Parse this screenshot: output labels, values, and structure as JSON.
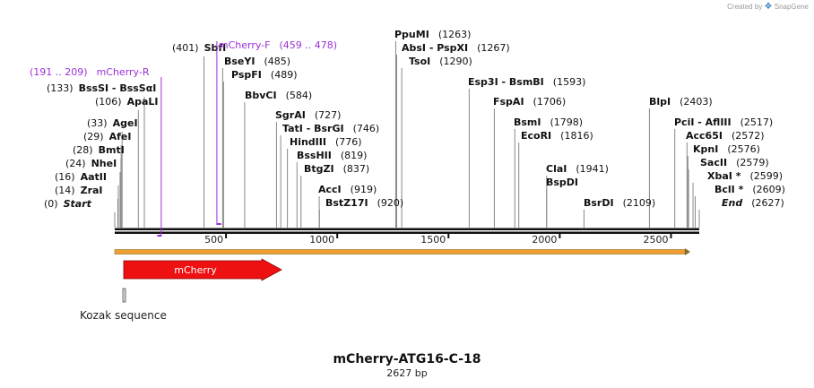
{
  "credit": {
    "prefix": "Created by",
    "brand": "SnapGene"
  },
  "map": {
    "name": "mCherry-ATG16-C-18",
    "length_label": "2627 bp",
    "length_bp": 2627,
    "ticks": [
      {
        "bp": 500,
        "label": "500"
      },
      {
        "bp": 1000,
        "label": "1000"
      },
      {
        "bp": 1500,
        "label": "1500"
      },
      {
        "bp": 2000,
        "label": "2000"
      },
      {
        "bp": 2500,
        "label": "2500"
      }
    ]
  },
  "sites": [
    {
      "name": "Start",
      "pos_label": "(0)",
      "bp": 0,
      "italic": true,
      "side": "left"
    },
    {
      "name": "ZraI",
      "pos_label": "(14)",
      "bp": 14,
      "side": "left"
    },
    {
      "name": "AatII",
      "pos_label": "(16)",
      "bp": 16,
      "side": "left"
    },
    {
      "name": "NheI",
      "pos_label": "(24)",
      "bp": 24,
      "side": "left"
    },
    {
      "name": "BmtI",
      "pos_label": "(28)",
      "bp": 28,
      "side": "left"
    },
    {
      "name": "AfeI",
      "pos_label": "(29)",
      "bp": 29,
      "side": "left"
    },
    {
      "name": "AgeI",
      "pos_label": "(33)",
      "bp": 33,
      "side": "left"
    },
    {
      "name": "ApaLI",
      "pos_label": "(106)",
      "bp": 106,
      "side": "left"
    },
    {
      "name": "BssSI - BssSαI",
      "pos_label": "(133)",
      "bp": 133,
      "side": "left"
    },
    {
      "name": "SbfI",
      "pos_label": "(401)",
      "bp": 401,
      "side": "left"
    },
    {
      "name": "BseYI",
      "pos_label": "(485)",
      "bp": 485,
      "side": "right"
    },
    {
      "name": "PspFI",
      "pos_label": "(489)",
      "bp": 489,
      "side": "right"
    },
    {
      "name": "BbvCI",
      "pos_label": "(584)",
      "bp": 584,
      "side": "right"
    },
    {
      "name": "SgrAI",
      "pos_label": "(727)",
      "bp": 727,
      "side": "right"
    },
    {
      "name": "TatI - BsrGI",
      "pos_label": "(746)",
      "bp": 746,
      "side": "right"
    },
    {
      "name": "HindIII",
      "pos_label": "(776)",
      "bp": 776,
      "side": "right"
    },
    {
      "name": "BssHII",
      "pos_label": "(819)",
      "bp": 819,
      "side": "right"
    },
    {
      "name": "BtgZI",
      "pos_label": "(837)",
      "bp": 837,
      "side": "right"
    },
    {
      "name": "AccI",
      "pos_label": "(919)",
      "bp": 919,
      "side": "right"
    },
    {
      "name": "BstZ17I",
      "pos_label": "(920)",
      "bp": 920,
      "side": "right"
    },
    {
      "name": "PpuMI",
      "pos_label": "(1263)",
      "bp": 1263,
      "side": "right"
    },
    {
      "name": "AbsI - PspXI",
      "pos_label": "(1267)",
      "bp": 1267,
      "side": "right"
    },
    {
      "name": "TsoI",
      "pos_label": "(1290)",
      "bp": 1290,
      "side": "right"
    },
    {
      "name": "Esp3I - BsmBI",
      "pos_label": "(1593)",
      "bp": 1593,
      "side": "right"
    },
    {
      "name": "FspAI",
      "pos_label": "(1706)",
      "bp": 1706,
      "side": "right"
    },
    {
      "name": "BsmI",
      "pos_label": "(1798)",
      "bp": 1798,
      "side": "right"
    },
    {
      "name": "EcoRI",
      "pos_label": "(1816)",
      "bp": 1816,
      "side": "right"
    },
    {
      "name": "ClaI",
      "pos_label": "(1941)",
      "bp": 1941,
      "side": "right"
    },
    {
      "name": "BspDI",
      "pos_label": "",
      "bp": 1941,
      "side": "right"
    },
    {
      "name": "BsrDI",
      "pos_label": "(2109)",
      "bp": 2109,
      "side": "right"
    },
    {
      "name": "BlpI",
      "pos_label": "(2403)",
      "bp": 2403,
      "side": "right"
    },
    {
      "name": "PciI - AflIII",
      "pos_label": "(2517)",
      "bp": 2517,
      "side": "right"
    },
    {
      "name": "Acc65I",
      "pos_label": "(2572)",
      "bp": 2572,
      "side": "right"
    },
    {
      "name": "KpnI",
      "pos_label": "(2576)",
      "bp": 2576,
      "side": "right"
    },
    {
      "name": "SacII",
      "pos_label": "(2579)",
      "bp": 2579,
      "side": "right"
    },
    {
      "name": "XbaI *",
      "pos_label": "(2599)",
      "bp": 2599,
      "side": "right"
    },
    {
      "name": "BclI *",
      "pos_label": "(2609)",
      "bp": 2609,
      "side": "right"
    },
    {
      "name": "End",
      "pos_label": "(2627)",
      "bp": 2627,
      "italic": true,
      "side": "right"
    }
  ],
  "primers": [
    {
      "name": "mCherry-F",
      "range_label": "(459 .. 478)",
      "start": 459,
      "end": 478,
      "color": "#9b30d9"
    },
    {
      "name": "mCherry-R",
      "range_label": "(191 .. 209)",
      "start": 191,
      "end": 209,
      "color": "#9b30d9"
    }
  ],
  "features": [
    {
      "name": "mCherry",
      "start": 41,
      "end": 752,
      "color": "#ee1111"
    },
    {
      "name": "Kozak sequence",
      "start": 33,
      "end": 42,
      "color": "#d8d8d8"
    }
  ],
  "orf": {
    "start": 0,
    "end": 2627,
    "color": "#f0a030"
  }
}
